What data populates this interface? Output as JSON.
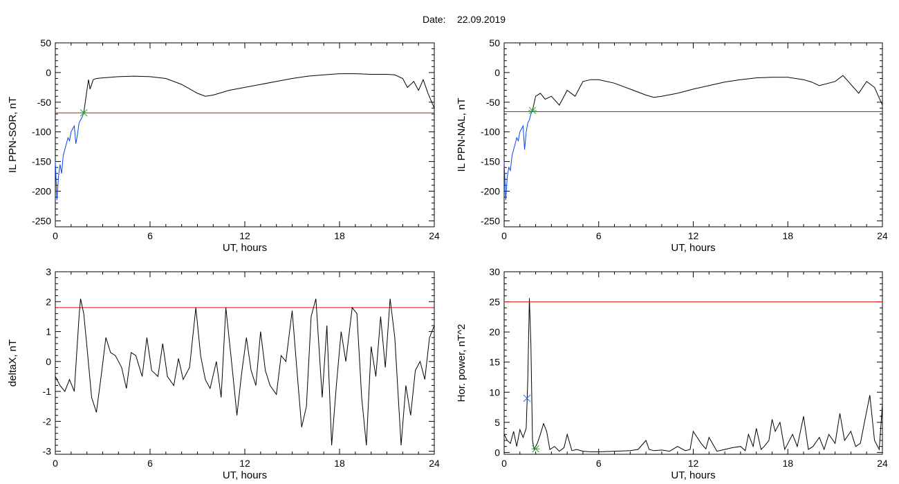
{
  "figure": {
    "date_label": "Date:",
    "date_value": "22.09.2019"
  },
  "chart_data": [
    {
      "id": "p1",
      "type": "line",
      "xlabel": "UT, hours",
      "ylabel": "IL PPN-SOR, nT",
      "xlim": [
        0,
        24
      ],
      "ylim": [
        -260,
        50
      ],
      "xticks": [
        0,
        6,
        12,
        18,
        24
      ],
      "yticks": [
        50,
        0,
        -50,
        -100,
        -150,
        -200,
        -250
      ],
      "threshold": -68,
      "marker": {
        "x": 1.8,
        "y": -68,
        "symbol": "star",
        "color": "#22aa22"
      },
      "series": [
        {
          "color": "#0044ee",
          "x": [
            0.0,
            0.1,
            0.2,
            0.3,
            0.4,
            0.5,
            0.6,
            0.7,
            0.8,
            0.9,
            1.0,
            1.1,
            1.2,
            1.3,
            1.4,
            1.5,
            1.6,
            1.7,
            1.8
          ],
          "y": [
            -150,
            -215,
            -175,
            -155,
            -170,
            -140,
            -130,
            -120,
            -110,
            -115,
            -100,
            -95,
            -90,
            -120,
            -105,
            -85,
            -80,
            -75,
            -68
          ]
        },
        {
          "color": "#000000",
          "x": [
            1.8,
            2.0,
            2.1,
            2.2,
            2.4,
            2.6,
            3,
            4,
            5,
            6,
            7,
            8,
            9,
            9.5,
            10,
            11,
            12,
            13,
            14,
            15,
            16,
            17,
            18,
            19,
            20,
            21,
            21.5,
            22,
            22.3,
            22.7,
            23,
            23.3,
            23.6,
            24
          ],
          "y": [
            -68,
            -30,
            -12,
            -28,
            -12,
            -10,
            -9,
            -7,
            -6,
            -7,
            -10,
            -20,
            -35,
            -40,
            -38,
            -30,
            -25,
            -20,
            -15,
            -10,
            -6,
            -4,
            -2,
            -2,
            -3,
            -3,
            -4,
            -10,
            -25,
            -15,
            -30,
            -12,
            -35,
            -60
          ]
        }
      ]
    },
    {
      "id": "p2",
      "type": "line",
      "xlabel": "UT, hours",
      "ylabel": "IL PPN-NAL, nT",
      "xlim": [
        0,
        24
      ],
      "ylim": [
        -260,
        50
      ],
      "xticks": [
        0,
        6,
        12,
        18,
        24
      ],
      "yticks": [
        50,
        0,
        -50,
        -100,
        -150,
        -200,
        -250
      ],
      "threshold": -66,
      "marker": {
        "x": 1.8,
        "y": -64,
        "symbol": "star",
        "color": "#22aa22"
      },
      "series": [
        {
          "color": "#0044ee",
          "x": [
            0.0,
            0.1,
            0.2,
            0.3,
            0.4,
            0.5,
            0.6,
            0.7,
            0.8,
            0.9,
            1.0,
            1.1,
            1.2,
            1.3,
            1.4,
            1.5,
            1.6,
            1.7,
            1.8
          ],
          "y": [
            -150,
            -215,
            -175,
            -160,
            -165,
            -140,
            -130,
            -120,
            -110,
            -115,
            -100,
            -95,
            -90,
            -130,
            -100,
            -85,
            -80,
            -70,
            -64
          ]
        },
        {
          "color": "#000000",
          "x": [
            1.8,
            2.0,
            2.3,
            2.6,
            3,
            3.5,
            4,
            4.5,
            5,
            5.5,
            6,
            7,
            8,
            9,
            9.5,
            10,
            11,
            12,
            13,
            14,
            15,
            16,
            17,
            18,
            19,
            19.5,
            20,
            21,
            21.5,
            22,
            22.5,
            23,
            23.5,
            24
          ],
          "y": [
            -64,
            -40,
            -35,
            -45,
            -40,
            -55,
            -30,
            -40,
            -15,
            -12,
            -12,
            -18,
            -28,
            -38,
            -42,
            -40,
            -35,
            -28,
            -22,
            -16,
            -12,
            -9,
            -8,
            -8,
            -12,
            -16,
            -22,
            -15,
            -5,
            -20,
            -35,
            -15,
            -25,
            -55
          ]
        }
      ]
    },
    {
      "id": "p3",
      "type": "line",
      "xlabel": "UT, hours",
      "ylabel": "deltaX, nT",
      "xlim": [
        0,
        24
      ],
      "ylim": [
        -3.1,
        3
      ],
      "xticks": [
        0,
        6,
        12,
        18,
        24
      ],
      "yticks": [
        3,
        2,
        1,
        0,
        -1,
        -2,
        -3
      ],
      "threshold": 1.8,
      "series": [
        {
          "color": "#000000",
          "x": [
            0,
            0.3,
            0.6,
            0.9,
            1.2,
            1.5,
            1.6,
            1.8,
            2.0,
            2.3,
            2.6,
            2.9,
            3.2,
            3.5,
            3.8,
            4.2,
            4.5,
            4.8,
            5.1,
            5.5,
            5.8,
            6.1,
            6.5,
            6.8,
            7.1,
            7.5,
            7.8,
            8.1,
            8.5,
            8.9,
            9.2,
            9.5,
            9.8,
            10.2,
            10.5,
            10.8,
            11.2,
            11.5,
            11.8,
            12.1,
            12.4,
            12.7,
            13.0,
            13.3,
            13.6,
            14.0,
            14.3,
            14.6,
            15.0,
            15.3,
            15.6,
            15.9,
            16.2,
            16.5,
            16.9,
            17.2,
            17.5,
            17.8,
            18.1,
            18.4,
            18.8,
            19.1,
            19.4,
            19.7,
            20.0,
            20.3,
            20.6,
            20.9,
            21.2,
            21.5,
            21.9,
            22.2,
            22.5,
            22.8,
            23.1,
            23.4,
            23.7,
            24.0
          ],
          "y": [
            -0.5,
            -0.8,
            -1.0,
            -0.6,
            -1.0,
            1.5,
            2.1,
            1.6,
            0.5,
            -1.2,
            -1.7,
            -0.5,
            0.8,
            0.3,
            0.2,
            -0.2,
            -0.9,
            0.3,
            0.2,
            -0.5,
            0.8,
            -0.3,
            -0.5,
            0.6,
            -0.5,
            -0.8,
            0.1,
            -0.6,
            -0.2,
            1.8,
            0.2,
            -0.6,
            -0.9,
            0.0,
            -1.2,
            1.8,
            -0.2,
            -1.8,
            -0.4,
            0.8,
            -0.3,
            -0.8,
            1.0,
            -0.3,
            -0.8,
            -1.1,
            0.2,
            0.0,
            1.7,
            -0.3,
            -2.2,
            -1.5,
            1.5,
            2.1,
            -1.2,
            1.2,
            -2.8,
            -0.8,
            1.0,
            0.0,
            1.8,
            1.6,
            -1.2,
            -2.8,
            0.5,
            -0.5,
            1.5,
            -0.2,
            2.1,
            0.8,
            -2.8,
            -0.8,
            -1.8,
            -0.3,
            0.0,
            -0.6,
            0.8,
            1.2
          ]
        }
      ]
    },
    {
      "id": "p4",
      "type": "line",
      "xlabel": "UT, hours",
      "ylabel": "Hor. power, nT^2",
      "xlim": [
        0,
        24
      ],
      "ylim": [
        -0.3,
        30
      ],
      "xticks": [
        0,
        6,
        12,
        18,
        24
      ],
      "yticks": [
        30,
        25,
        20,
        15,
        10,
        5,
        0
      ],
      "threshold": 25,
      "marker": {
        "x": 1.45,
        "y": 9,
        "symbol": "cross",
        "color": "#2277dd"
      },
      "marker2": {
        "x": 2.0,
        "y": 0.6,
        "symbol": "star",
        "color": "#22aa22"
      },
      "series": [
        {
          "color": "#000000",
          "x": [
            0,
            0.2,
            0.4,
            0.6,
            0.8,
            1.0,
            1.2,
            1.4,
            1.5,
            1.6,
            1.7,
            1.8,
            1.9,
            2.1,
            2.3,
            2.5,
            2.7,
            2.9,
            3.2,
            3.5,
            3.8,
            4.0,
            4.3,
            4.6,
            5,
            5.5,
            6,
            7,
            8,
            8.5,
            9,
            9.2,
            9.5,
            10,
            10.5,
            11,
            11.5,
            11.8,
            12,
            12.5,
            12.8,
            13,
            13.5,
            14,
            14.5,
            15,
            15.3,
            15.5,
            15.8,
            16,
            16.3,
            16.5,
            16.8,
            17,
            17.2,
            17.5,
            17.8,
            18,
            18.3,
            18.6,
            19,
            19.3,
            19.6,
            20,
            20.3,
            20.6,
            21,
            21.3,
            21.6,
            22,
            22.3,
            22.6,
            22.9,
            23.2,
            23.5,
            23.8,
            24
          ],
          "y": [
            3.0,
            2.0,
            1.5,
            3.5,
            1.0,
            3.8,
            2.5,
            4.0,
            12.0,
            25.6,
            18.0,
            2.0,
            0.5,
            1.5,
            3.0,
            4.8,
            3.5,
            0.5,
            1.0,
            0.2,
            0.8,
            3.0,
            0.3,
            0.5,
            0.2,
            0.1,
            0.1,
            0.2,
            0.3,
            0.5,
            2.0,
            0.5,
            0.3,
            0.4,
            0.2,
            1.0,
            0.3,
            0.5,
            3.5,
            1.5,
            0.6,
            2.5,
            0.2,
            0.5,
            0.8,
            1.0,
            0.3,
            3.0,
            1.0,
            4.0,
            0.5,
            1.0,
            2.0,
            5.5,
            3.5,
            5.0,
            0.5,
            1.5,
            3.0,
            1.0,
            6.0,
            0.5,
            1.0,
            2.5,
            0.5,
            3.0,
            1.5,
            6.5,
            2.0,
            3.5,
            1.0,
            1.5,
            5.5,
            9.5,
            2.0,
            0.5,
            8.0
          ]
        }
      ]
    }
  ]
}
